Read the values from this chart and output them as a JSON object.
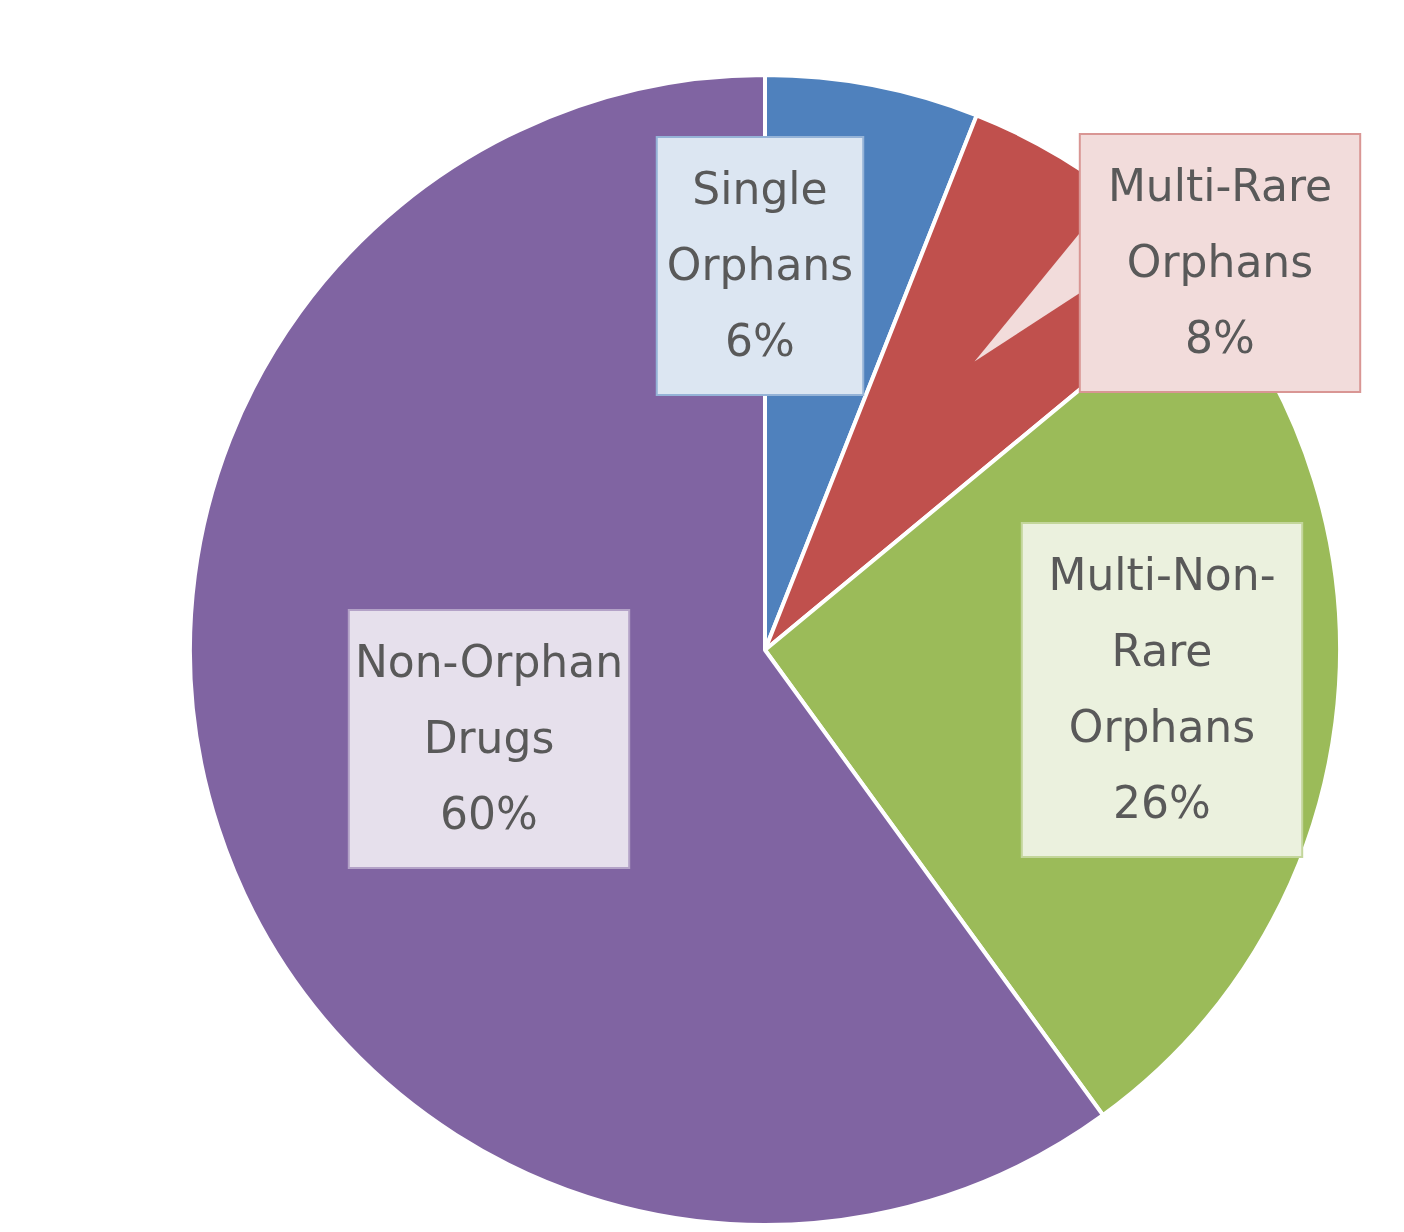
{
  "chart_data": {
    "type": "pie",
    "categories": [
      "Single Orphans",
      "Multi-Rare Orphans",
      "Multi-Non-Rare Orphans",
      "Non-Orphan Drugs"
    ],
    "values": [
      6,
      8,
      26,
      60
    ],
    "colors": [
      "#4f81bd",
      "#c0504d",
      "#9bbb59",
      "#8064a2"
    ],
    "value_labels": [
      "6%",
      "8%",
      "26%",
      "60%"
    ],
    "legend": false
  }
}
